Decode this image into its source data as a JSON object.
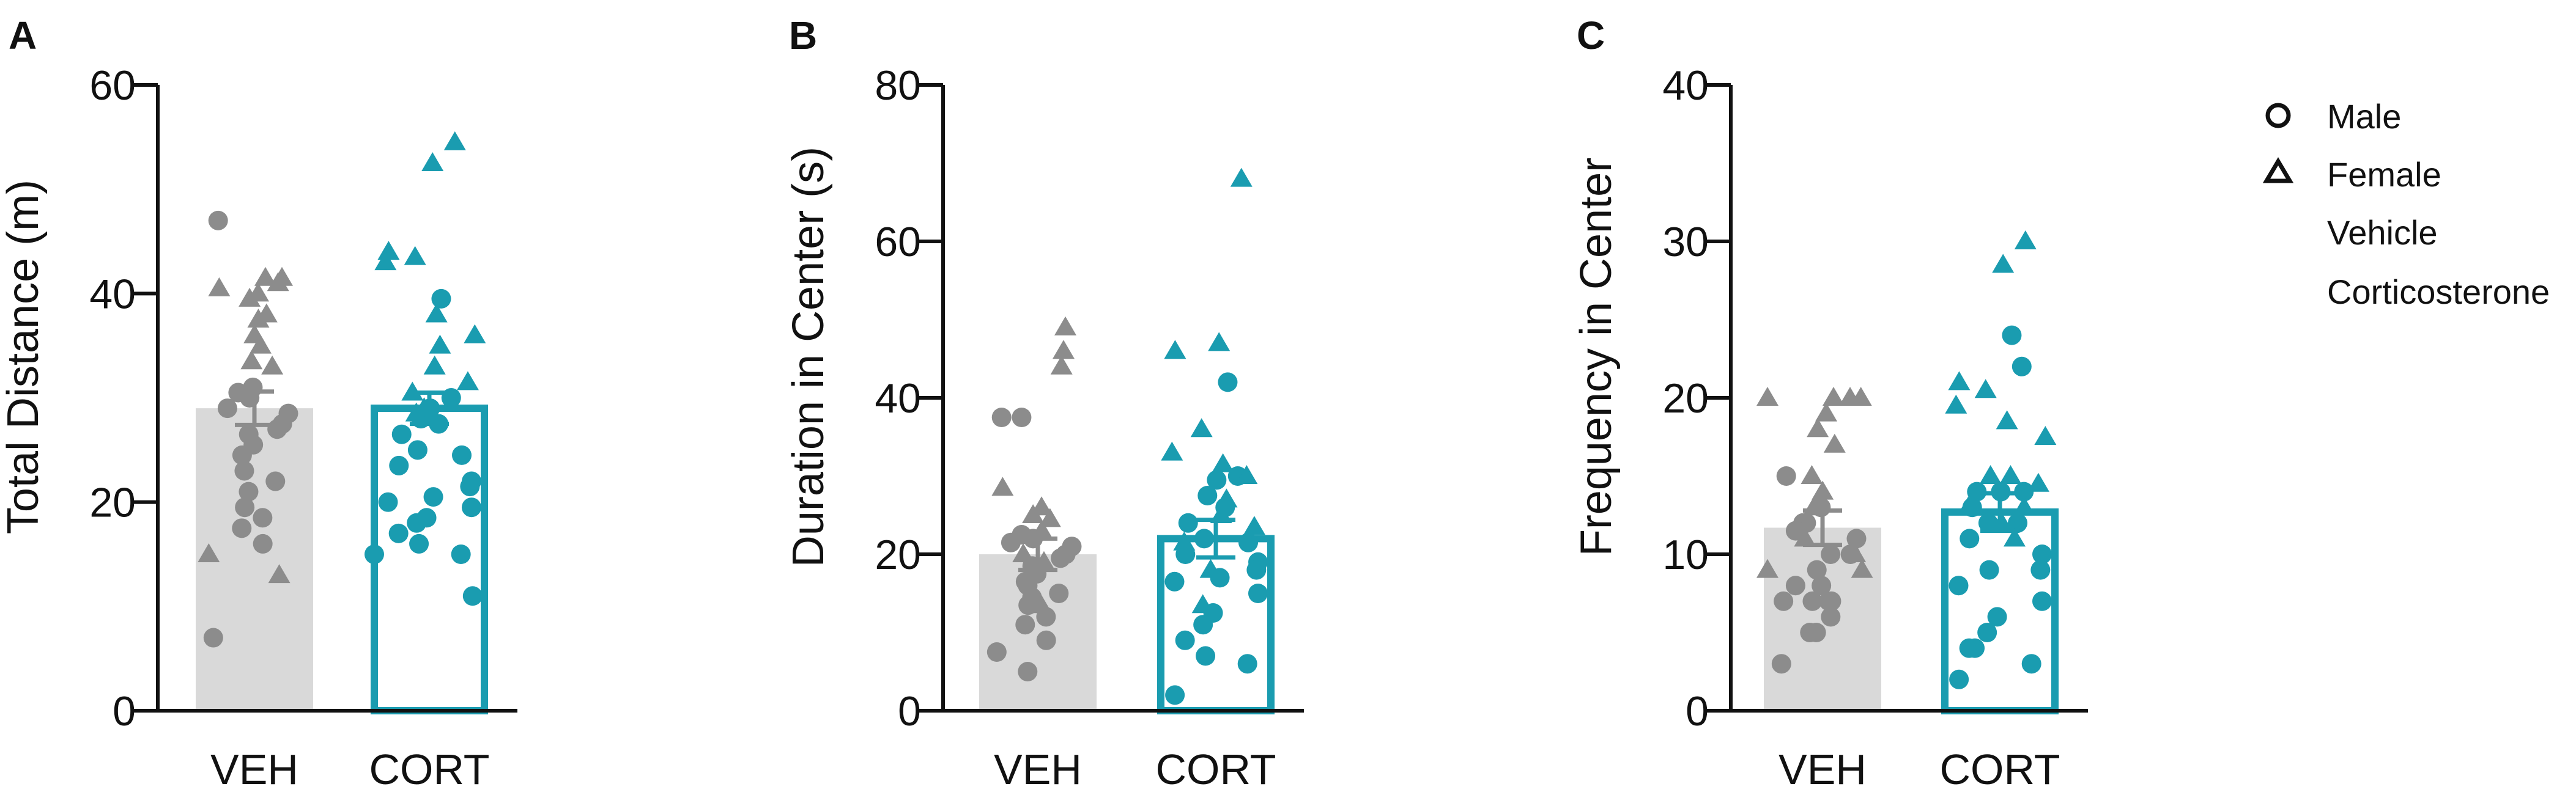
{
  "colors": {
    "vehicle": "#8c8c8c",
    "vehicle_bar": "#d9d9d9",
    "cort": "#1a9cb0",
    "axis": "#111111"
  },
  "legend": {
    "male": "Male",
    "female": "Female",
    "vehicle": "Vehicle",
    "cort": "Corticosterone"
  },
  "chart_data": [
    {
      "panel_letter": "A",
      "type": "bar",
      "ylabel": "Total Distance (m)",
      "ylim": [
        0,
        60
      ],
      "yticks": [
        0,
        20,
        40,
        60
      ],
      "tick_labels": [
        "0",
        "20",
        "40",
        "60"
      ],
      "categories": [
        "VEH",
        "CORT"
      ],
      "means": [
        29,
        29
      ],
      "sem": [
        1.6,
        1.5
      ],
      "points": [
        {
          "group": 0,
          "sex": "M",
          "values": [
            47,
            31,
            30.5,
            30,
            29,
            28.5,
            27.5,
            27,
            26.5,
            25.5,
            24.5,
            23,
            22,
            21,
            19.5,
            18.5,
            17.5,
            16,
            7
          ]
        },
        {
          "group": 0,
          "sex": "F",
          "values": [
            41.5,
            41.5,
            41,
            40.5,
            40,
            39.5,
            38,
            37.5,
            36,
            35,
            33.5,
            33,
            15,
            13
          ]
        },
        {
          "group": 1,
          "sex": "M",
          "values": [
            39.5,
            30,
            29,
            28,
            27.5,
            26.5,
            25,
            24.5,
            23.5,
            22,
            21.5,
            20.5,
            20,
            19.5,
            18.5,
            18,
            17,
            16,
            15,
            15,
            11
          ]
        },
        {
          "group": 1,
          "sex": "F",
          "values": [
            54.5,
            52.5,
            44,
            43.5,
            43,
            38,
            36,
            35,
            33,
            31.5,
            30.5,
            29,
            28.5
          ]
        }
      ]
    },
    {
      "panel_letter": "B",
      "type": "bar",
      "ylabel": "Duration in Center (s)",
      "ylim": [
        0,
        80
      ],
      "yticks": [
        0,
        20,
        40,
        60,
        80
      ],
      "tick_labels": [
        "0",
        "20",
        "40",
        "60",
        "80"
      ],
      "categories": [
        "VEH",
        "CORT"
      ],
      "means": [
        20,
        22
      ],
      "sem": [
        2.0,
        2.4
      ],
      "points": [
        {
          "group": 0,
          "sex": "M",
          "values": [
            37.5,
            37.5,
            22.5,
            22,
            21.5,
            21,
            20,
            19.5,
            18.5,
            17.5,
            16.5,
            16,
            15,
            14.5,
            13.5,
            12,
            11,
            9,
            7.5,
            5
          ]
        },
        {
          "group": 0,
          "sex": "F",
          "values": [
            49,
            46,
            44,
            28.5,
            26,
            25,
            24.5,
            23,
            20,
            19,
            14,
            13.5
          ]
        },
        {
          "group": 1,
          "sex": "M",
          "values": [
            42,
            30,
            29.5,
            27.5,
            26,
            24,
            22,
            21.5,
            20,
            19,
            18,
            17,
            16.5,
            15,
            12.5,
            11,
            9,
            7,
            6,
            2
          ]
        },
        {
          "group": 1,
          "sex": "F",
          "values": [
            68,
            47,
            46,
            36,
            33,
            31.5,
            30,
            27,
            25,
            23.5,
            21.5,
            18,
            13.5
          ]
        }
      ]
    },
    {
      "panel_letter": "C",
      "type": "bar",
      "ylabel": "Frequency in Center",
      "ylim": [
        0,
        40
      ],
      "yticks": [
        0,
        10,
        20,
        30,
        40
      ],
      "tick_labels": [
        "0",
        "10",
        "20",
        "30",
        "40"
      ],
      "categories": [
        "VEH",
        "CORT"
      ],
      "means": [
        11.7,
        12.7
      ],
      "sem": [
        1.1,
        1.2
      ],
      "points": [
        {
          "group": 0,
          "sex": "M",
          "values": [
            15,
            13,
            12,
            12,
            11.5,
            11,
            10,
            10,
            9,
            8,
            8,
            7,
            7,
            7,
            7,
            6,
            5,
            5,
            3
          ]
        },
        {
          "group": 0,
          "sex": "F",
          "values": [
            20,
            20,
            20,
            20,
            19,
            18,
            17,
            15,
            14,
            13,
            11,
            10,
            9,
            9
          ]
        },
        {
          "group": 1,
          "sex": "M",
          "values": [
            24,
            22,
            14,
            14,
            14,
            13,
            12,
            12,
            11,
            10,
            9,
            9,
            8,
            7,
            6,
            5,
            4,
            4,
            3,
            2
          ]
        },
        {
          "group": 1,
          "sex": "F",
          "values": [
            30,
            28.5,
            21,
            20.5,
            19.5,
            18.5,
            17.5,
            15,
            15,
            14.5,
            13,
            13,
            12,
            11
          ]
        }
      ]
    }
  ]
}
